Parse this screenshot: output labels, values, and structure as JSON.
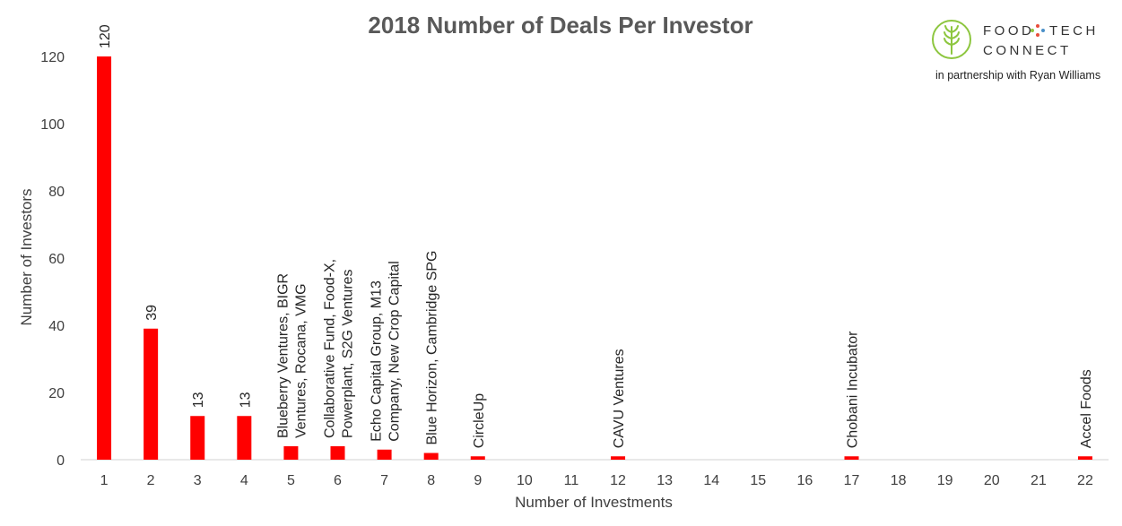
{
  "chart_data": {
    "type": "bar",
    "title": "2018 Number of Deals Per Investor",
    "xlabel": "Number of Investments",
    "ylabel": "Number of Investors",
    "ylim": [
      0,
      130
    ],
    "y_ticks": [
      0,
      20,
      40,
      60,
      80,
      100,
      120
    ],
    "grid": false,
    "categories": [
      "1",
      "2",
      "3",
      "4",
      "5",
      "6",
      "7",
      "8",
      "9",
      "10",
      "11",
      "12",
      "13",
      "14",
      "15",
      "16",
      "17",
      "18",
      "19",
      "20",
      "21",
      "22"
    ],
    "values": [
      120,
      39,
      13,
      13,
      4,
      4,
      3,
      2,
      1,
      0,
      0,
      1,
      0,
      0,
      0,
      0,
      1,
      0,
      0,
      0,
      0,
      1
    ],
    "bar_color": "#ff0000",
    "data_labels": [
      {
        "category": "1",
        "lines": [
          "120"
        ]
      },
      {
        "category": "2",
        "lines": [
          "39"
        ]
      },
      {
        "category": "3",
        "lines": [
          "13"
        ]
      },
      {
        "category": "4",
        "lines": [
          "13"
        ]
      },
      {
        "category": "5",
        "lines": [
          "Blueberry Ventures, BIGR",
          "Ventures, Rocana, VMG"
        ]
      },
      {
        "category": "6",
        "lines": [
          "Collaborative Fund, Food-X,",
          "Powerplant, S2G Ventures"
        ]
      },
      {
        "category": "7",
        "lines": [
          "Echo Capital Group, M13",
          "Company, New Crop Capital"
        ]
      },
      {
        "category": "8",
        "lines": [
          "Blue Horizon, Cambridge SPG"
        ]
      },
      {
        "category": "9",
        "lines": [
          "CircleUp"
        ]
      },
      {
        "category": "12",
        "lines": [
          "CAVU Ventures"
        ]
      },
      {
        "category": "17",
        "lines": [
          "Chobani Incubator"
        ]
      },
      {
        "category": "22",
        "lines": [
          "Accel Foods"
        ]
      }
    ]
  },
  "logo": {
    "word_left": "FOOD",
    "word_right": "TECH",
    "word_bottom": "CONNECT",
    "tagline": "in partnership with Ryan Williams",
    "icon": "wheat-circle-icon",
    "green": "#8dc63f",
    "dot_colors": [
      "#e84e3c",
      "#8dc63f",
      "#f7a823",
      "#4a90c8"
    ]
  }
}
